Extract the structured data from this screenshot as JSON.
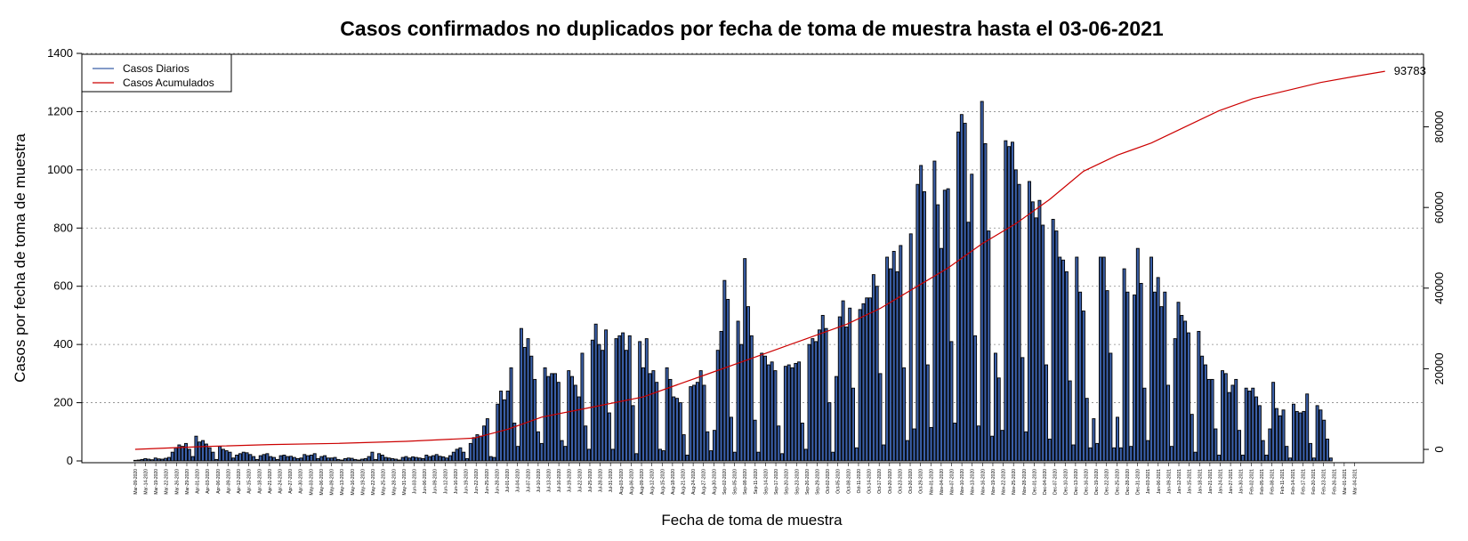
{
  "chart_data": {
    "type": "bar",
    "title": "Casos confirmados no duplicados por fecha de toma de muestra hasta el 03-06-2021",
    "xlabel": "Fecha de toma de muestra",
    "ylabel": "Casos por fecha de toma de muestra",
    "ylim": [
      0,
      1400
    ],
    "y_ticks": [
      0,
      200,
      400,
      600,
      800,
      1000,
      1200,
      1400
    ],
    "y2lim": [
      -3300,
      98000
    ],
    "y2_ticks": [
      0,
      20000,
      40000,
      60000,
      80000
    ],
    "grid": "horizontal dotted",
    "legend_position": "top-left",
    "x_start": "2020-03-09",
    "x_end": "2021-03-06",
    "x_tick_labels": [
      "Mar-09-2020",
      "Mar-14-2020",
      "Mar-19-2020",
      "Mar-22-2020",
      "Mar-26-2020",
      "Mar-29-2020",
      "Apr-01-2020",
      "Apr-03-2020",
      "Apr-06-2020",
      "Apr-09-2020",
      "Apr-12-2020",
      "Apr-15-2020",
      "Apr-18-2020",
      "Apr-21-2020",
      "Apr-24-2020",
      "Apr-27-2020",
      "Apr-30-2020",
      "May-03-2020",
      "May-06-2020",
      "May-09-2020",
      "May-13-2020",
      "May-16-2020",
      "May-19-2020",
      "May-22-2020",
      "May-25-2020",
      "May-28-2020",
      "May-31-2020",
      "Jun-03-2020",
      "Jun-06-2020",
      "Jun-09-2020",
      "Jun-12-2020",
      "Jun-16-2020",
      "Jun-19-2020",
      "Jun-22-2020",
      "Jun-25-2020",
      "Jun-28-2020",
      "Jul-01-2020",
      "Jul-04-2020",
      "Jul-07-2020",
      "Jul-10-2020",
      "Jul-13-2020",
      "Jul-16-2020",
      "Jul-19-2020",
      "Jul-22-2020",
      "Jul-25-2020",
      "Jul-28-2020",
      "Jul-31-2020",
      "Aug-03-2020",
      "Aug-06-2020",
      "Aug-09-2020",
      "Aug-12-2020",
      "Aug-15-2020",
      "Aug-18-2020",
      "Aug-21-2020",
      "Aug-24-2020",
      "Aug-27-2020",
      "Aug-30-2020",
      "Sep-02-2020",
      "Sep-05-2020",
      "Sep-08-2020",
      "Sep-11-2020",
      "Sep-14-2020",
      "Sep-17-2020",
      "Sep-20-2020",
      "Sep-23-2020",
      "Sep-26-2020",
      "Sep-29-2020",
      "Oct-02-2020",
      "Oct-05-2020",
      "Oct-08-2020",
      "Oct-11-2020",
      "Oct-14-2020",
      "Oct-17-2020",
      "Oct-20-2020",
      "Oct-23-2020",
      "Oct-26-2020",
      "Oct-29-2020",
      "Nov-01-2020",
      "Nov-04-2020",
      "Nov-07-2020",
      "Nov-10-2020",
      "Nov-13-2020",
      "Nov-16-2020",
      "Nov-19-2020",
      "Nov-22-2020",
      "Nov-25-2020",
      "Nov-28-2020",
      "Dec-01-2020",
      "Dec-04-2020",
      "Dec-07-2020",
      "Dec-10-2020",
      "Dec-13-2020",
      "Dec-16-2020",
      "Dec-19-2020",
      "Dec-22-2020",
      "Dec-25-2020",
      "Dec-28-2020",
      "Dec-31-2020",
      "Jan-03-2021",
      "Jan-06-2021",
      "Jan-09-2021",
      "Jan-12-2021",
      "Jan-15-2021",
      "Jan-18-2021",
      "Jan-21-2021",
      "Jan-24-2021",
      "Jan-27-2021",
      "Jan-30-2021",
      "Feb-02-2021",
      "Feb-05-2021",
      "Feb-08-2021",
      "Feb-11-2021",
      "Feb-14-2021",
      "Feb-17-2021",
      "Feb-20-2021",
      "Feb-23-2021",
      "Feb-26-2021",
      "Mar-01-2021",
      "Mar-04-2021"
    ],
    "series": [
      {
        "name": "Casos Diarios",
        "color": "#3a5fa8",
        "values": [
          2,
          3,
          5,
          8,
          6,
          4,
          10,
          7,
          6,
          9,
          12,
          30,
          45,
          55,
          50,
          60,
          40,
          15,
          85,
          65,
          70,
          58,
          45,
          30,
          5,
          50,
          40,
          35,
          30,
          10,
          20,
          25,
          30,
          28,
          22,
          15,
          5,
          18,
          22,
          25,
          15,
          12,
          5,
          18,
          20,
          15,
          16,
          12,
          8,
          10,
          22,
          18,
          20,
          25,
          8,
          15,
          18,
          10,
          10,
          12,
          5,
          3,
          8,
          10,
          9,
          5,
          3,
          6,
          8,
          15,
          30,
          5,
          25,
          20,
          12,
          10,
          8,
          6,
          3,
          12,
          15,
          10,
          14,
          12,
          10,
          8,
          20,
          15,
          18,
          22,
          16,
          14,
          10,
          18,
          30,
          40,
          45,
          30,
          8,
          60,
          80,
          90,
          85,
          120,
          145,
          15,
          12,
          195,
          240,
          210,
          240,
          320,
          130,
          50,
          455,
          390,
          420,
          360,
          280,
          100,
          60,
          320,
          290,
          300,
          300,
          270,
          70,
          50,
          310,
          290,
          260,
          220,
          370,
          120,
          40,
          415,
          470,
          400,
          380,
          450,
          165,
          40,
          420,
          430,
          440,
          380,
          430,
          190,
          25,
          410,
          320,
          420,
          300,
          310,
          270,
          40,
          35,
          320,
          280,
          220,
          215,
          200,
          90,
          20,
          255,
          260,
          270,
          310,
          260,
          100,
          35,
          105,
          380,
          445,
          620,
          555,
          150,
          30,
          480,
          400,
          695,
          530,
          430,
          140,
          30,
          370,
          360,
          330,
          340,
          310,
          120,
          25,
          325,
          330,
          320,
          335,
          340,
          130,
          40,
          400,
          420,
          410,
          450,
          500,
          455,
          200,
          30,
          290,
          495,
          550,
          460,
          525,
          250,
          45,
          520,
          540,
          560,
          560,
          640,
          600,
          300,
          55,
          700,
          660,
          720,
          650,
          740,
          320,
          70,
          780,
          110,
          950,
          1015,
          925,
          330,
          115,
          1030,
          880,
          730,
          930,
          935,
          410,
          130,
          1130,
          1190,
          1160,
          820,
          985,
          430,
          120,
          1235,
          1090,
          790,
          85,
          370,
          285,
          105,
          1100,
          1080,
          1095,
          1000,
          950,
          355,
          100,
          960,
          890,
          835,
          895,
          810,
          330,
          75,
          830,
          790,
          700,
          690,
          650,
          275,
          55,
          700,
          580,
          515,
          215,
          45,
          145,
          60,
          700,
          700,
          585,
          370,
          45,
          150,
          45,
          660,
          580,
          50,
          570,
          730,
          610,
          250,
          70,
          700,
          580,
          630,
          530,
          580,
          260,
          50,
          420,
          545,
          500,
          480,
          440,
          160,
          30,
          445,
          360,
          330,
          280,
          280,
          110,
          20,
          310,
          300,
          235,
          260,
          280,
          105,
          20,
          250,
          240,
          250,
          220,
          190,
          70,
          20,
          110,
          270,
          180,
          155,
          175,
          50,
          10,
          195,
          170,
          165,
          170,
          230,
          60,
          10,
          190,
          175,
          140,
          75,
          10
        ]
      },
      {
        "name": "Casos Acumulados",
        "color": "#cc0000",
        "points": [
          [
            0,
            0
          ],
          [
            20,
            700
          ],
          [
            40,
            1200
          ],
          [
            60,
            1500
          ],
          [
            80,
            2000
          ],
          [
            100,
            2800
          ],
          [
            110,
            5000
          ],
          [
            120,
            8000
          ],
          [
            135,
            10500
          ],
          [
            150,
            13000
          ],
          [
            160,
            16000
          ],
          [
            170,
            19000
          ],
          [
            180,
            22000
          ],
          [
            190,
            25000
          ],
          [
            200,
            28000
          ],
          [
            210,
            31000
          ],
          [
            220,
            35000
          ],
          [
            230,
            40000
          ],
          [
            240,
            45000
          ],
          [
            250,
            51000
          ],
          [
            260,
            56000
          ],
          [
            270,
            62000
          ],
          [
            280,
            69000
          ],
          [
            290,
            73000
          ],
          [
            300,
            76000
          ],
          [
            310,
            80000
          ],
          [
            320,
            84000
          ],
          [
            330,
            87000
          ],
          [
            340,
            89000
          ],
          [
            350,
            91000
          ],
          [
            360,
            92500
          ],
          [
            369,
            93783
          ]
        ],
        "final_value": 93783,
        "final_label": "93783"
      }
    ]
  }
}
